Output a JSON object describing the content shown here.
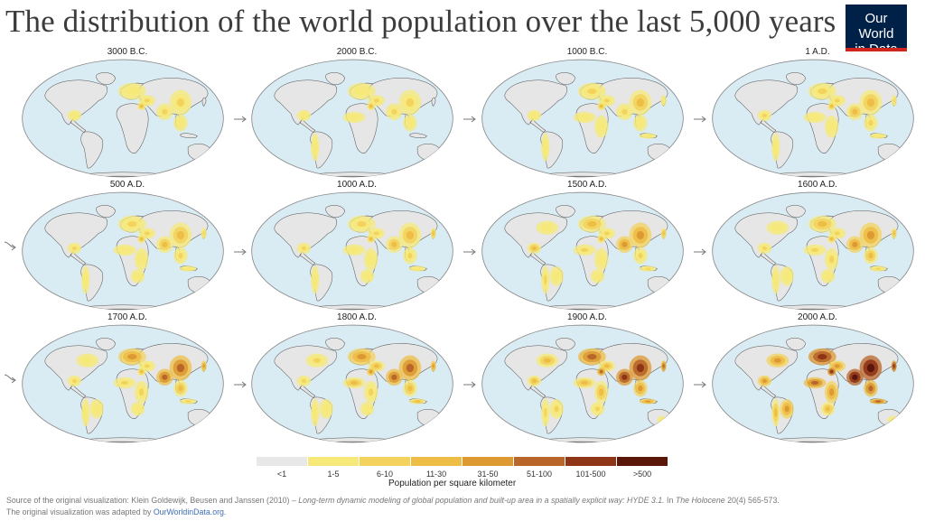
{
  "title": "The distribution of the world population over the last 5,000 years",
  "logo": {
    "line1": "Our World",
    "line2": "in Data"
  },
  "colors": {
    "ocean": "#d9ebf3",
    "land": "#e6e6e6",
    "border": "#555555",
    "brand_blue": "#002147",
    "brand_red": "#ce261e"
  },
  "panels": [
    {
      "label": "3000 B.C."
    },
    {
      "label": "2000 B.C."
    },
    {
      "label": "1000 B.C."
    },
    {
      "label": "1 A.D."
    },
    {
      "label": "500 A.D."
    },
    {
      "label": "1000 A.D."
    },
    {
      "label": "1500 A.D."
    },
    {
      "label": "1600 A.D."
    },
    {
      "label": "1700 A.D."
    },
    {
      "label": "1800 A.D."
    },
    {
      "label": "1900 A.D."
    },
    {
      "label": "2000 A.D."
    }
  ],
  "legend": {
    "title": "Population per square kilometer",
    "bins": [
      {
        "label": "<1",
        "color": "#e8e8e8"
      },
      {
        "label": "1-5",
        "color": "#f6e97a"
      },
      {
        "label": "6-10",
        "color": "#f3d35d"
      },
      {
        "label": "11-30",
        "color": "#eebd45"
      },
      {
        "label": "31-50",
        "color": "#dd9a33"
      },
      {
        "label": "51-100",
        "color": "#b86629"
      },
      {
        "label": "101-500",
        "color": "#8f3517"
      },
      {
        "label": ">500",
        "color": "#5a1709"
      }
    ]
  },
  "source": {
    "prefix": "Source of the original visualization: Klein Goldewijk, Beusen and Janssen (2010) – ",
    "title_italic": "Long-term dynamic modeling of global population and built-up area in a spatially explicit way: HYDE 3.1.",
    "middle": " In ",
    "journal_italic": "The Holocene",
    "suffix": " 20(4) 565-573.",
    "line2_prefix": "The original visualization was adapted by ",
    "link": "OurWorldinData.org",
    "line2_suffix": "."
  }
}
